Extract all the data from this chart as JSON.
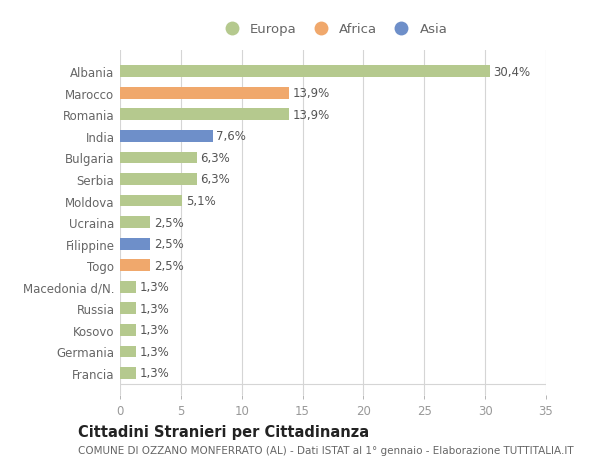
{
  "countries": [
    "Albania",
    "Marocco",
    "Romania",
    "India",
    "Bulgaria",
    "Serbia",
    "Moldova",
    "Ucraina",
    "Filippine",
    "Togo",
    "Macedonia d/N.",
    "Russia",
    "Kosovo",
    "Germania",
    "Francia"
  ],
  "values": [
    30.4,
    13.9,
    13.9,
    7.6,
    6.3,
    6.3,
    5.1,
    2.5,
    2.5,
    2.5,
    1.3,
    1.3,
    1.3,
    1.3,
    1.3
  ],
  "labels": [
    "30,4%",
    "13,9%",
    "13,9%",
    "7,6%",
    "6,3%",
    "6,3%",
    "5,1%",
    "2,5%",
    "2,5%",
    "2,5%",
    "1,3%",
    "1,3%",
    "1,3%",
    "1,3%",
    "1,3%"
  ],
  "continents": [
    "Europa",
    "Africa",
    "Europa",
    "Asia",
    "Europa",
    "Europa",
    "Europa",
    "Europa",
    "Asia",
    "Africa",
    "Europa",
    "Europa",
    "Europa",
    "Europa",
    "Europa"
  ],
  "colors": {
    "Europa": "#b5c98e",
    "Africa": "#f0a86c",
    "Asia": "#6e8fc9"
  },
  "xlim": [
    0,
    35
  ],
  "xticks": [
    0,
    5,
    10,
    15,
    20,
    25,
    30,
    35
  ],
  "title": "Cittadini Stranieri per Cittadinanza",
  "subtitle": "COMUNE DI OZZANO MONFERRATO (AL) - Dati ISTAT al 1° gennaio - Elaborazione TUTTITALIA.IT",
  "background_color": "#ffffff",
  "grid_color": "#d5d5d5",
  "bar_height": 0.55,
  "label_fontsize": 8.5,
  "tick_fontsize": 8.5,
  "title_fontsize": 10.5,
  "subtitle_fontsize": 7.5,
  "ytick_color": "#666666",
  "xtick_color": "#999999",
  "label_color": "#555555"
}
